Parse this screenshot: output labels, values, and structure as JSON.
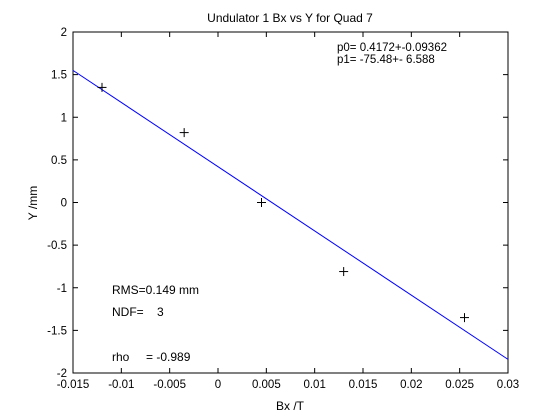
{
  "chart_data": {
    "type": "scatter",
    "title": "Undulator 1 Bx vs Y for Quad 7",
    "xlabel": "Bx /T",
    "ylabel": "Y /mm",
    "xlim": [
      -0.015,
      0.03
    ],
    "ylim": [
      -2,
      2
    ],
    "xticks": [
      -0.015,
      -0.01,
      -0.005,
      0,
      0.005,
      0.01,
      0.015,
      0.02,
      0.025,
      0.03
    ],
    "xtick_labels": [
      "-0.015",
      "-0.01",
      "-0.005",
      "0",
      "0.005",
      "0.01",
      "0.015",
      "0.02",
      "0.025",
      "0.03"
    ],
    "yticks": [
      -2,
      -1.5,
      -1,
      -0.5,
      0,
      0.5,
      1,
      1.5,
      2
    ],
    "ytick_labels": [
      "-2",
      "-1.5",
      "-1",
      "-0.5",
      "0",
      "0.5",
      "1",
      "1.5",
      "2"
    ],
    "grid": false,
    "series": [
      {
        "marker": "+",
        "color": "#000000",
        "points": [
          {
            "x": -0.012,
            "y": 1.35
          },
          {
            "x": -0.0035,
            "y": 0.82
          },
          {
            "x": 0.0045,
            "y": 0.0
          },
          {
            "x": 0.013,
            "y": -0.81
          },
          {
            "x": 0.0255,
            "y": -1.35
          }
        ]
      },
      {
        "line": true,
        "color": "#0000ff",
        "points": [
          {
            "x": -0.015,
            "y": 1.55
          },
          {
            "x": 0.03,
            "y": -1.84
          }
        ]
      }
    ],
    "annotations": {
      "p0": "p0= 0.4172+-0.09362",
      "p1": "p1= -75.48+- 6.588",
      "rms": "RMS=0.149 mm",
      "ndf": "NDF=    3",
      "rho": "rho     = -0.989"
    }
  }
}
